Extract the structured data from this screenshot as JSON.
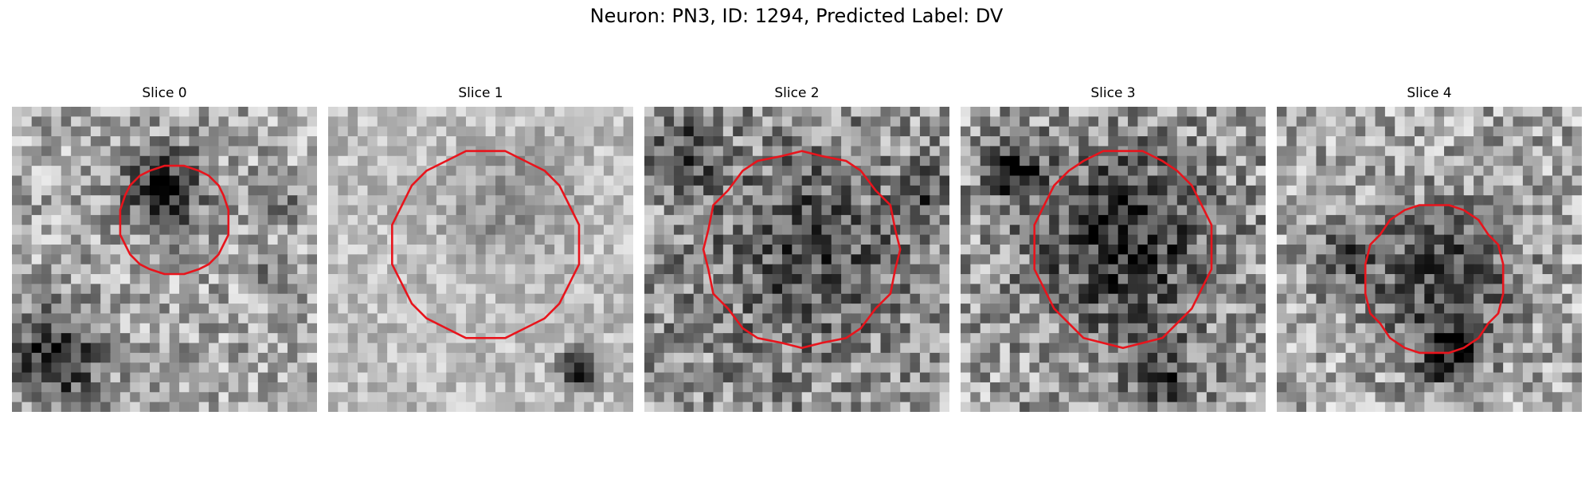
{
  "figure": {
    "title": "Neuron: PN3, ID: 1294, Predicted Label: DV"
  },
  "panels": [
    {
      "title": "Slice 0"
    },
    {
      "title": "Slice 1"
    },
    {
      "title": "Slice 2"
    },
    {
      "title": "Slice 3"
    },
    {
      "title": "Slice 4"
    }
  ],
  "contour_color": "#e8141c"
}
